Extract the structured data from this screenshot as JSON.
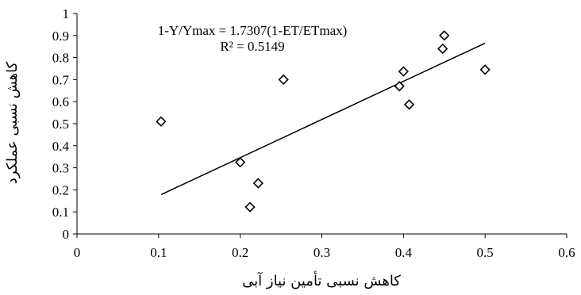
{
  "chart_data": {
    "type": "scatter",
    "xlabel": "کاهش نسبی تأمین نیاز آبی",
    "ylabel": "کاهش نسبی عملکرد",
    "xlim": [
      0,
      0.6
    ],
    "ylim": [
      0,
      1
    ],
    "x_ticks": [
      "0",
      "0.1",
      "0.2",
      "0.3",
      "0.4",
      "0.5",
      "0.6"
    ],
    "y_ticks": [
      "0",
      "0.1",
      "0.2",
      "0.3",
      "0.4",
      "0.5",
      "0.6",
      "0.7",
      "0.8",
      "0.9",
      "1"
    ],
    "grid": false,
    "marker": "diamond",
    "points": [
      {
        "x": 0.103,
        "y": 0.51
      },
      {
        "x": 0.2,
        "y": 0.325
      },
      {
        "x": 0.212,
        "y": 0.122
      },
      {
        "x": 0.222,
        "y": 0.23
      },
      {
        "x": 0.253,
        "y": 0.7
      },
      {
        "x": 0.395,
        "y": 0.67
      },
      {
        "x": 0.4,
        "y": 0.737
      },
      {
        "x": 0.407,
        "y": 0.587
      },
      {
        "x": 0.448,
        "y": 0.84
      },
      {
        "x": 0.45,
        "y": 0.9
      },
      {
        "x": 0.5,
        "y": 0.745
      }
    ],
    "trendline": {
      "slope": 1.7307,
      "x_range": [
        0.103,
        0.5
      ]
    },
    "annotations": {
      "equation": "1-Y/Ymax = 1.7307(1-ET/ETmax)",
      "r_squared": "R² = 0.5149"
    }
  }
}
